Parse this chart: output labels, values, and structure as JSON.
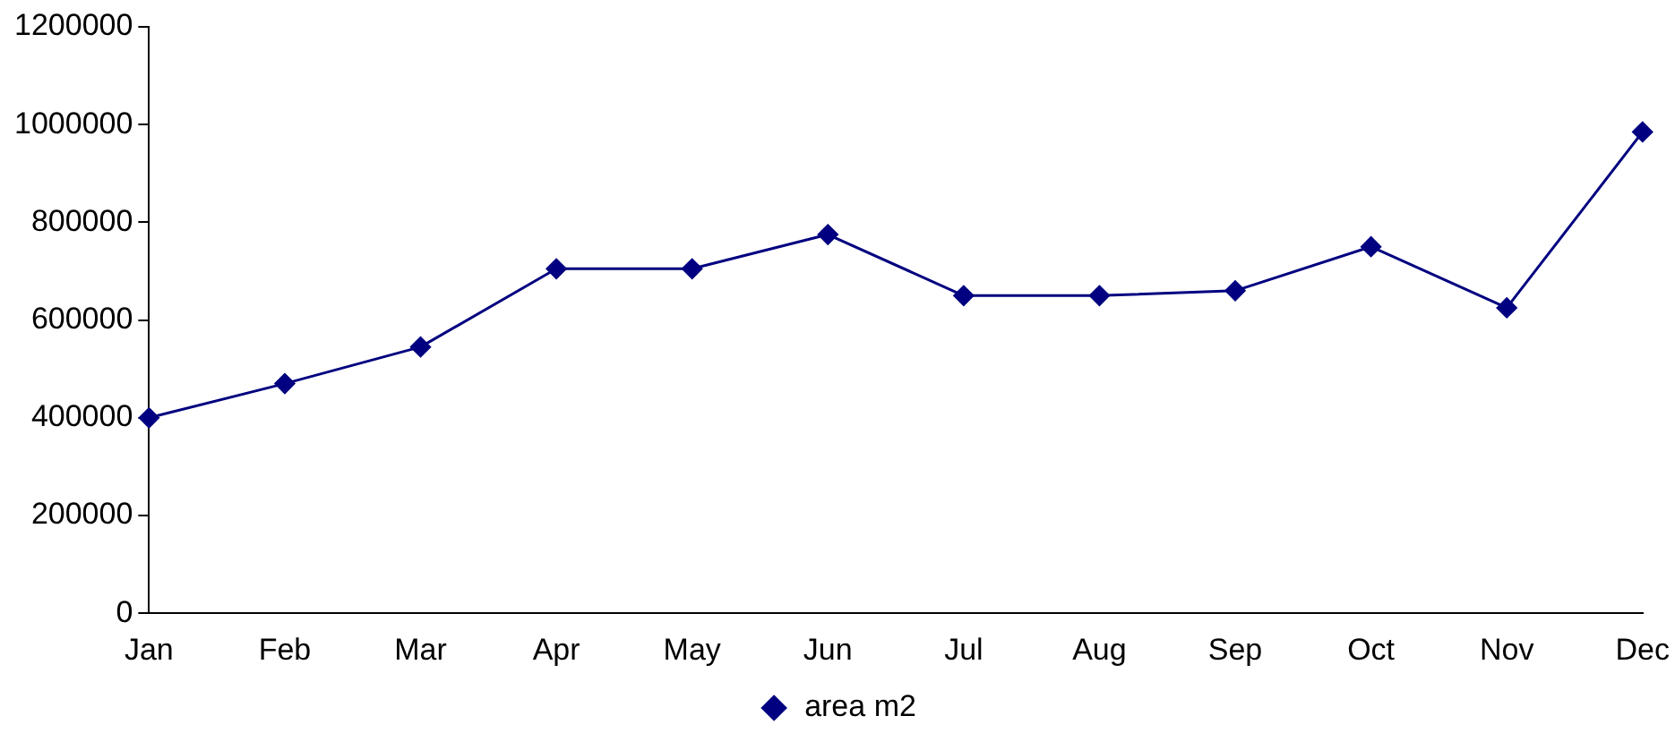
{
  "chart_data": {
    "type": "line",
    "categories": [
      "Jan",
      "Feb",
      "Mar",
      "Apr",
      "May",
      "Jun",
      "Jul",
      "Aug",
      "Sep",
      "Oct",
      "Nov",
      "Dec"
    ],
    "series": [
      {
        "name": "area m2",
        "color": "#000080",
        "values": [
          400000,
          470000,
          545000,
          705000,
          705000,
          775000,
          650000,
          650000,
          660000,
          750000,
          625000,
          985000
        ]
      }
    ],
    "ylim": [
      0,
      1200000
    ],
    "yticks": [
      0,
      200000,
      400000,
      600000,
      800000,
      1000000,
      1200000
    ],
    "grid": false,
    "legend": "bottom",
    "marker": "diamond",
    "line_style": "solid"
  }
}
